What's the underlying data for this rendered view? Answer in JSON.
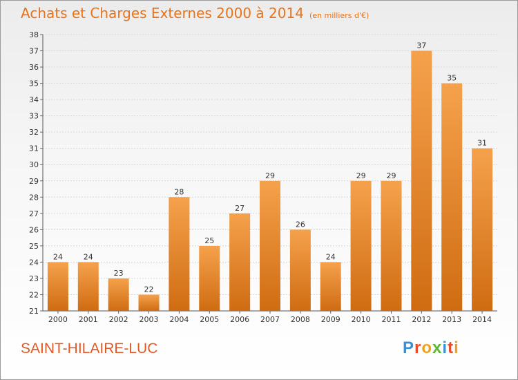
{
  "chart_data": {
    "type": "bar",
    "title": "Achats et Charges Externes 2000 à 2014",
    "subtitle": "(en milliers d'€)",
    "categories": [
      "2000",
      "2001",
      "2002",
      "2003",
      "2004",
      "2005",
      "2006",
      "2007",
      "2008",
      "2009",
      "2010",
      "2011",
      "2012",
      "2013",
      "2014"
    ],
    "values": [
      24,
      24,
      23,
      22,
      28,
      25,
      27,
      29,
      26,
      24,
      29,
      29,
      37,
      35,
      31
    ],
    "ylim": [
      21,
      38
    ],
    "yticks": [
      21,
      22,
      23,
      24,
      25,
      26,
      27,
      28,
      29,
      30,
      31,
      32,
      33,
      34,
      35,
      36,
      37,
      38
    ],
    "xlabel": "",
    "ylabel": "",
    "grid": true,
    "bar_color": "#e8892f"
  },
  "footer": {
    "commune": "SAINT-HILAIRE-LUC",
    "logo_letters": [
      "P",
      "r",
      "o",
      "x",
      "i",
      "t",
      "i"
    ],
    "logo_colors": [
      "#3a8fd6",
      "#e84c2b",
      "#f0a020",
      "#5bb834",
      "#3a8fd6",
      "#e84c2b",
      "#f0a020"
    ]
  }
}
